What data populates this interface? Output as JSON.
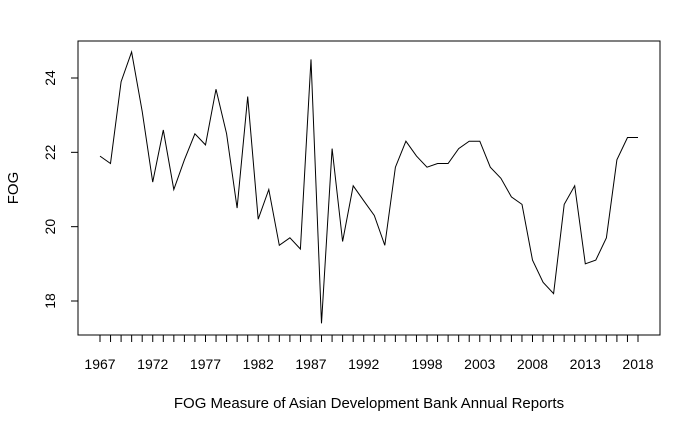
{
  "chart_data": {
    "type": "line",
    "title": "",
    "xlabel": "FOG Measure of Asian Development Bank Annual Reports",
    "ylabel": "FOG",
    "xlim": [
      1967,
      2018
    ],
    "ylim": [
      17.0,
      25.0
    ],
    "x_tick_labels": [
      "1967",
      "1972",
      "1977",
      "1982",
      "1987",
      "1992",
      "1998",
      "2003",
      "2008",
      "2013",
      "2018"
    ],
    "y_tick_labels": [
      "18",
      "20",
      "22",
      "24"
    ],
    "grid": false,
    "series": [
      {
        "name": "",
        "x": [
          1967,
          1968,
          1969,
          1970,
          1971,
          1972,
          1973,
          1974,
          1975,
          1976,
          1977,
          1978,
          1979,
          1980,
          1981,
          1982,
          1983,
          1984,
          1985,
          1986,
          1987,
          1988,
          1989,
          1990,
          1991,
          1992,
          1993,
          1994,
          1995,
          1996,
          1997,
          1998,
          1999,
          2000,
          2001,
          2002,
          2003,
          2004,
          2005,
          2006,
          2007,
          2008,
          2009,
          2010,
          2011,
          2012,
          2013,
          2014,
          2015,
          2016,
          2017,
          2018
        ],
        "values": [
          21.9,
          21.7,
          23.9,
          24.7,
          23.1,
          21.2,
          22.6,
          21.0,
          21.8,
          22.5,
          22.2,
          23.7,
          22.5,
          20.5,
          23.5,
          20.2,
          21.0,
          19.5,
          19.7,
          19.4,
          24.5,
          17.4,
          22.1,
          19.6,
          21.1,
          20.7,
          20.3,
          19.5,
          21.6,
          22.3,
          21.9,
          21.6,
          21.7,
          21.7,
          22.1,
          22.3,
          22.3,
          21.6,
          21.3,
          20.8,
          20.6,
          19.1,
          18.5,
          18.2,
          20.6,
          21.1,
          19.0,
          19.1,
          19.7,
          21.8,
          22.4,
          22.4
        ]
      }
    ]
  }
}
